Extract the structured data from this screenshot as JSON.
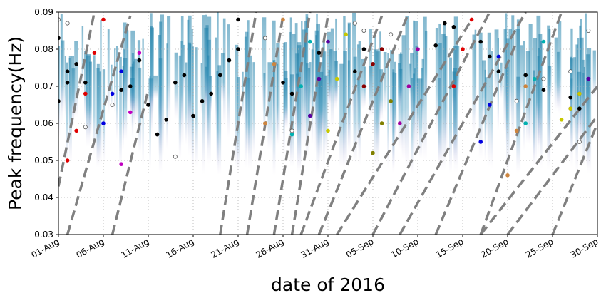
{
  "chart_data": {
    "type": "scatter",
    "title": "",
    "xlabel": "date of 2016",
    "ylabel": "Peak frequency(Hz)",
    "x_axis_type": "date",
    "xlim": [
      "2016-08-01",
      "2016-09-30"
    ],
    "ylim": [
      0.03,
      0.09
    ],
    "grid": true,
    "grid_style": "dotted",
    "x_ticks": [
      "01-Aug",
      "06-Aug",
      "11-Aug",
      "16-Aug",
      "21-Aug",
      "26-Aug",
      "31-Aug",
      "05-Sep",
      "10-Sep",
      "15-Sep",
      "20-Sep",
      "25-Sep",
      "30-Sep"
    ],
    "x_tick_dates": [
      "2016-08-01",
      "2016-08-06",
      "2016-08-11",
      "2016-08-16",
      "2016-08-21",
      "2016-08-26",
      "2016-08-31",
      "2016-09-05",
      "2016-09-10",
      "2016-09-15",
      "2016-09-20",
      "2016-09-25",
      "2016-09-30"
    ],
    "y_ticks": [
      "0.03",
      "0.04",
      "0.05",
      "0.06",
      "0.07",
      "0.08",
      "0.09"
    ],
    "y_tick_values": [
      0.03,
      0.04,
      0.05,
      0.06,
      0.07,
      0.08,
      0.09
    ],
    "background_density_color": "#1f7fa8",
    "dispersion_lines": {
      "color": "#808080",
      "style": "dashed",
      "lines": [
        {
          "x": [
            "2016-08-01",
            "2016-08-05"
          ],
          "y": [
            0.043,
            0.09
          ]
        },
        {
          "x": [
            "2016-08-02",
            "2016-08-09"
          ],
          "y": [
            0.03,
            0.089
          ]
        },
        {
          "x": [
            "2016-08-07",
            "2016-08-11"
          ],
          "y": [
            0.03,
            0.069
          ]
        },
        {
          "x": [
            "2016-08-19",
            "2016-08-23"
          ],
          "y": [
            0.03,
            0.09
          ]
        },
        {
          "x": [
            "2016-08-22",
            "2016-08-26"
          ],
          "y": [
            0.03,
            0.089
          ]
        },
        {
          "x": [
            "2016-08-25",
            "2016-08-29"
          ],
          "y": [
            0.03,
            0.09
          ]
        },
        {
          "x": [
            "2016-08-27",
            "2016-08-31"
          ],
          "y": [
            0.03,
            0.089
          ]
        },
        {
          "x": [
            "2016-08-28",
            "2016-09-06"
          ],
          "y": [
            0.03,
            0.089
          ]
        },
        {
          "x": [
            "2016-08-30",
            "2016-09-09"
          ],
          "y": [
            0.03,
            0.09
          ]
        },
        {
          "x": [
            "2016-09-01",
            "2016-09-16"
          ],
          "y": [
            0.03,
            0.088
          ]
        },
        {
          "x": [
            "2016-09-05",
            "2016-09-18"
          ],
          "y": [
            0.03,
            0.09
          ]
        },
        {
          "x": [
            "2016-09-08",
            "2016-09-22"
          ],
          "y": [
            0.03,
            0.09
          ]
        },
        {
          "x": [
            "2016-09-12",
            "2016-09-21"
          ],
          "y": [
            0.03,
            0.082
          ]
        },
        {
          "x": [
            "2016-09-17",
            "2016-09-26"
          ],
          "y": [
            0.03,
            0.09
          ]
        },
        {
          "x": [
            "2016-09-17",
            "2016-09-30"
          ],
          "y": [
            0.03,
            0.07
          ]
        },
        {
          "x": [
            "2016-09-20",
            "2016-09-30"
          ],
          "y": [
            0.03,
            0.062
          ]
        },
        {
          "x": [
            "2016-09-25",
            "2016-09-30"
          ],
          "y": [
            0.03,
            0.06
          ]
        }
      ]
    },
    "series": [
      {
        "color": "#000000",
        "marker": "dot",
        "x": [
          "2016-08-01",
          "2016-08-01",
          "2016-08-02",
          "2016-08-02",
          "2016-08-03",
          "2016-08-04",
          "2016-08-08",
          "2016-08-09",
          "2016-08-10",
          "2016-08-11",
          "2016-08-12",
          "2016-08-13",
          "2016-08-14",
          "2016-08-15",
          "2016-08-16",
          "2016-08-17",
          "2016-08-18",
          "2016-08-19",
          "2016-08-20",
          "2016-08-21",
          "2016-08-21",
          "2016-08-26",
          "2016-08-27",
          "2016-08-30",
          "2016-09-03",
          "2016-09-04",
          "2016-09-12",
          "2016-09-13",
          "2016-09-14",
          "2016-09-17",
          "2016-09-18",
          "2016-09-19",
          "2016-09-22",
          "2016-09-24",
          "2016-09-27",
          "2016-09-28"
        ],
        "y": [
          0.083,
          0.066,
          0.071,
          0.074,
          0.076,
          0.071,
          0.069,
          0.07,
          0.077,
          0.065,
          0.057,
          0.061,
          0.071,
          0.073,
          0.062,
          0.066,
          0.068,
          0.073,
          0.077,
          0.08,
          0.088,
          0.071,
          0.068,
          0.079,
          0.074,
          0.08,
          0.081,
          0.087,
          0.086,
          0.082,
          0.078,
          0.074,
          0.073,
          0.069,
          0.067,
          0.064
        ]
      },
      {
        "color": "#e00000",
        "marker": "dot",
        "x": [
          "2016-08-02",
          "2016-08-03",
          "2016-08-04",
          "2016-08-05",
          "2016-08-06"
        ],
        "y": [
          0.05,
          0.058,
          0.068,
          0.079,
          0.088
        ]
      },
      {
        "color": "#0000e0",
        "marker": "dot",
        "x": [
          "2016-08-06",
          "2016-08-07",
          "2016-08-08"
        ],
        "y": [
          0.06,
          0.068,
          0.074
        ]
      },
      {
        "color": "#c000c0",
        "marker": "dot",
        "x": [
          "2016-08-08",
          "2016-08-09",
          "2016-08-10"
        ],
        "y": [
          0.049,
          0.063,
          0.079
        ]
      },
      {
        "color": "#cd853f",
        "marker": "dot",
        "x": [
          "2016-08-24",
          "2016-08-25",
          "2016-08-26"
        ],
        "y": [
          0.06,
          0.076,
          0.088
        ]
      },
      {
        "color": "#00b0b0",
        "marker": "dot",
        "x": [
          "2016-08-27",
          "2016-08-28",
          "2016-08-29"
        ],
        "y": [
          0.057,
          0.07,
          0.082
        ]
      },
      {
        "color": "#5a00a0",
        "marker": "dot",
        "x": [
          "2016-08-29",
          "2016-08-30",
          "2016-08-31"
        ],
        "y": [
          0.062,
          0.072,
          0.082
        ]
      },
      {
        "color": "#c8c800",
        "marker": "dot",
        "x": [
          "2016-08-31",
          "2016-09-01",
          "2016-09-02"
        ],
        "y": [
          0.058,
          0.072,
          0.084
        ]
      },
      {
        "color": "#8b0000",
        "marker": "dot",
        "x": [
          "2016-09-04",
          "2016-09-05",
          "2016-09-06"
        ],
        "y": [
          0.07,
          0.076,
          0.08
        ]
      },
      {
        "color": "#808000",
        "marker": "dot",
        "x": [
          "2016-09-05",
          "2016-09-06",
          "2016-09-07"
        ],
        "y": [
          0.052,
          0.06,
          0.066
        ]
      },
      {
        "color": "#a000a0",
        "marker": "dot",
        "x": [
          "2016-09-08",
          "2016-09-09",
          "2016-09-10"
        ],
        "y": [
          0.06,
          0.07,
          0.08
        ]
      },
      {
        "color": "#e00000",
        "marker": "dot",
        "x": [
          "2016-09-14",
          "2016-09-15",
          "2016-09-16"
        ],
        "y": [
          0.07,
          0.08,
          0.088
        ]
      },
      {
        "color": "#0000e0",
        "marker": "dot",
        "x": [
          "2016-09-17",
          "2016-09-18",
          "2016-09-19"
        ],
        "y": [
          0.055,
          0.065,
          0.078
        ]
      },
      {
        "color": "#cd853f",
        "marker": "dot",
        "x": [
          "2016-09-20",
          "2016-09-21",
          "2016-09-22"
        ],
        "y": [
          0.046,
          0.058,
          0.07
        ]
      },
      {
        "color": "#00b0b0",
        "marker": "dot",
        "x": [
          "2016-09-22",
          "2016-09-23",
          "2016-09-24"
        ],
        "y": [
          0.06,
          0.072,
          0.082
        ]
      },
      {
        "color": "#5a00a0",
        "marker": "dot",
        "x": [
          "2016-09-27",
          "2016-09-28",
          "2016-09-29"
        ],
        "y": [
          0.064,
          0.068,
          0.072
        ]
      },
      {
        "color": "#c8c800",
        "marker": "dot",
        "x": [
          "2016-09-26",
          "2016-09-27",
          "2016-09-28"
        ],
        "y": [
          0.061,
          0.064,
          0.068
        ]
      },
      {
        "color": "#ffffff",
        "marker": "hollow",
        "x": [
          "2016-08-01",
          "2016-08-02",
          "2016-08-04",
          "2016-08-07",
          "2016-08-14",
          "2016-08-24",
          "2016-08-27",
          "2016-09-03",
          "2016-09-04",
          "2016-09-07",
          "2016-09-21",
          "2016-09-24",
          "2016-09-27",
          "2016-09-28",
          "2016-09-29"
        ],
        "y": [
          0.088,
          0.087,
          0.059,
          0.065,
          0.051,
          0.083,
          0.058,
          0.087,
          0.085,
          0.084,
          0.066,
          0.072,
          0.074,
          0.055,
          0.085
        ]
      }
    ]
  }
}
